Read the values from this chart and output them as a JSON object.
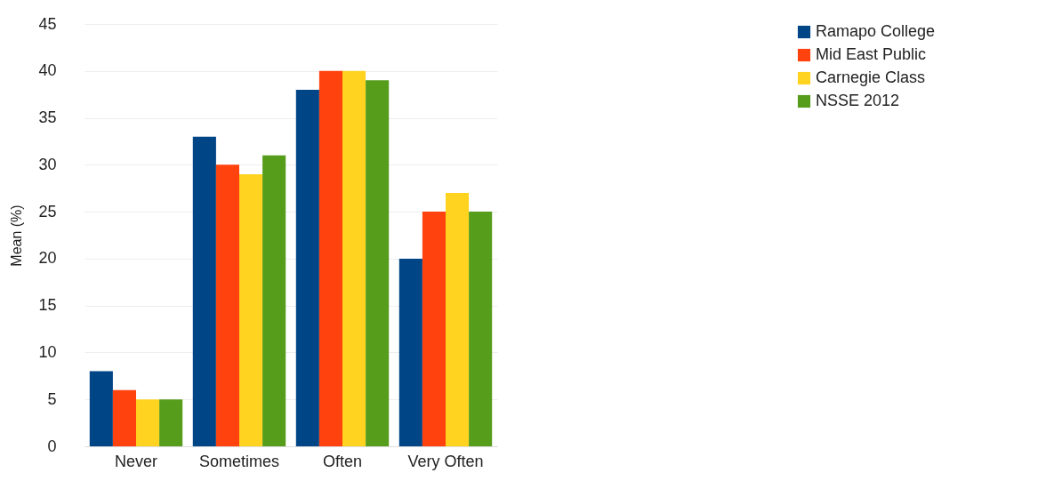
{
  "chart_data": {
    "type": "bar",
    "ylabel": "Mean (%)",
    "categories": [
      "Never",
      "Sometimes",
      "Often",
      "Very Often"
    ],
    "series": [
      {
        "name": "Ramapo College",
        "color": "#004586",
        "values": [
          8,
          33,
          38,
          20
        ]
      },
      {
        "name": "Mid East Public",
        "color": "#ff420e",
        "values": [
          6,
          30,
          40,
          25
        ]
      },
      {
        "name": "Carnegie Class",
        "color": "#ffd320",
        "values": [
          5,
          29,
          40,
          27
        ]
      },
      {
        "name": "NSSE 2012",
        "color": "#579d1c",
        "values": [
          5,
          31,
          39,
          25
        ]
      }
    ],
    "ylim": [
      0,
      45
    ],
    "yticks": [
      0,
      5,
      10,
      15,
      20,
      25,
      30,
      35,
      40,
      45
    ],
    "grid": "y",
    "legend": "top right"
  }
}
